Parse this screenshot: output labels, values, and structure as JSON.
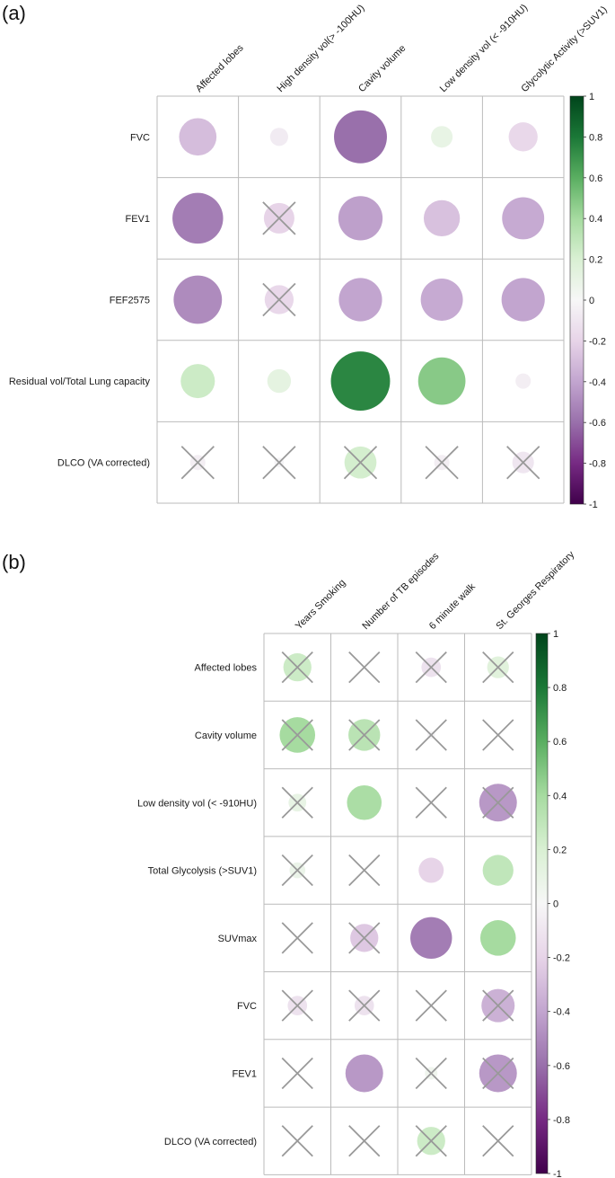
{
  "chart_data": [
    {
      "type": "correlation-matrix",
      "panel_label": "(a)",
      "columns": [
        "Affected lobes",
        "High density vol(> -100HU)",
        "Cavity volume",
        "Low density vol (< -910HU)",
        "Glycolytic Activity (>SUV1)"
      ],
      "rows": [
        "FVC",
        "FEV1",
        "FEF2575",
        "Residual vol/Total Lung capacity",
        "DLCO (VA corrected)"
      ],
      "values": [
        [
          -0.3,
          -0.07,
          -0.6,
          0.1,
          -0.18
        ],
        [
          -0.55,
          -0.2,
          -0.42,
          -0.28,
          -0.38
        ],
        [
          -0.5,
          -0.18,
          -0.4,
          -0.38,
          -0.4
        ],
        [
          0.25,
          0.12,
          0.75,
          0.48,
          -0.05
        ],
        [
          -0.05,
          -0.02,
          0.22,
          -0.05,
          -0.1
        ]
      ],
      "not_significant": [
        [
          false,
          false,
          false,
          false,
          false
        ],
        [
          false,
          true,
          false,
          false,
          false
        ],
        [
          false,
          true,
          false,
          false,
          false
        ],
        [
          false,
          false,
          false,
          false,
          false
        ],
        [
          true,
          true,
          true,
          true,
          true
        ]
      ],
      "colorbar": {
        "range": [
          -1,
          1
        ],
        "ticks": [
          "1",
          "0.8",
          "0.6",
          "0.4",
          "0.2",
          "0",
          "-0.2",
          "-0.4",
          "-0.6",
          "-0.8",
          "-1"
        ],
        "position": "right"
      }
    },
    {
      "type": "correlation-matrix",
      "panel_label": "(b)",
      "columns": [
        "Years Smoking",
        "Number of TB episodes",
        "6 minute walk",
        "St. Georges Respiratory"
      ],
      "rows": [
        "Affected lobes",
        "Cavity volume",
        "Low density vol (< -910HU)",
        "Total Glycolysis (>SUV1)",
        "SUVmax",
        "FVC",
        "FEV1",
        "DLCO (VA corrected)"
      ],
      "values": [
        [
          0.25,
          0.0,
          -0.12,
          0.15
        ],
        [
          0.4,
          0.32,
          -0.02,
          0.0
        ],
        [
          0.1,
          0.38,
          0.0,
          -0.45
        ],
        [
          0.08,
          0.0,
          -0.2,
          0.3
        ],
        [
          0.0,
          -0.25,
          -0.55,
          0.4
        ],
        [
          -0.12,
          -0.12,
          0.0,
          -0.35
        ],
        [
          0.0,
          -0.45,
          0.05,
          -0.45
        ],
        [
          0.0,
          0.0,
          0.25,
          0.0
        ]
      ],
      "not_significant": [
        [
          true,
          true,
          true,
          true
        ],
        [
          true,
          true,
          true,
          true
        ],
        [
          true,
          false,
          true,
          true
        ],
        [
          true,
          true,
          false,
          false
        ],
        [
          true,
          true,
          false,
          false
        ],
        [
          true,
          true,
          true,
          true
        ],
        [
          true,
          false,
          true,
          true
        ],
        [
          true,
          true,
          true,
          true
        ]
      ],
      "colorbar": {
        "range": [
          -1,
          1
        ],
        "ticks": [
          "1",
          "0.8",
          "0.6",
          "0.4",
          "0.2",
          "0",
          "-0.2",
          "-0.4",
          "-0.6",
          "-0.8",
          "-1"
        ],
        "position": "right"
      }
    }
  ],
  "colors": {
    "negative_end": "#40004b",
    "negative_mid": "#9970ab",
    "negative_light": "#e7d4e8",
    "zero": "#f7f7f7",
    "positive_light": "#d9f0d3",
    "positive_mid": "#5aae61",
    "positive_end": "#00441b",
    "grid": "#bbbbbb",
    "cross": "#999999"
  }
}
